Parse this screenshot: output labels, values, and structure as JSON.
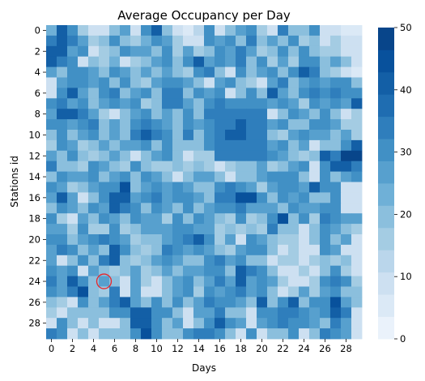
{
  "chart_data": {
    "type": "heatmap",
    "title": "Average Occupancy per Day",
    "xlabel": "Days",
    "ylabel": "Stations id",
    "x_tick_labels": [
      "0",
      "2",
      "4",
      "6",
      "8",
      "10",
      "12",
      "14",
      "16",
      "18",
      "20",
      "22",
      "24",
      "26",
      "28"
    ],
    "y_tick_labels": [
      "0",
      "2",
      "4",
      "6",
      "8",
      "10",
      "12",
      "14",
      "16",
      "18",
      "20",
      "22",
      "24",
      "26",
      "28"
    ],
    "rows": 30,
    "cols": 30,
    "vmin": 0,
    "vmax": 50,
    "colorbar_ticks": [
      "0",
      "10",
      "20",
      "30",
      "40",
      "50"
    ],
    "colormap": "Blues",
    "color_levels": [
      "#eaf2fb",
      "#dbe9f6",
      "#cde0f1",
      "#bad6eb",
      "#a4cce3",
      "#8bbfdd",
      "#6fb0d7",
      "#57a0ce",
      "#4190c5",
      "#2f7ebc",
      "#1f6db1",
      "#135fa6",
      "#08519c",
      "#08458a"
    ],
    "annotation": {
      "type": "circle",
      "row": 24,
      "col": 5,
      "color": "#e8252a"
    },
    "values": [
      [
        22,
        40,
        30,
        15,
        10,
        8,
        20,
        25,
        10,
        30,
        40,
        20,
        10,
        5,
        12,
        30,
        10,
        20,
        25,
        30,
        15,
        10,
        35,
        20,
        20,
        30,
        8,
        10,
        5,
        5
      ],
      [
        35,
        40,
        35,
        25,
        15,
        20,
        30,
        20,
        15,
        22,
        30,
        25,
        15,
        8,
        10,
        30,
        25,
        30,
        20,
        35,
        20,
        25,
        20,
        30,
        15,
        20,
        10,
        15,
        10,
        10
      ],
      [
        42,
        42,
        25,
        30,
        10,
        15,
        20,
        30,
        25,
        25,
        20,
        30,
        15,
        25,
        15,
        20,
        30,
        25,
        35,
        25,
        15,
        20,
        30,
        20,
        30,
        20,
        15,
        15,
        10,
        8
      ],
      [
        40,
        35,
        30,
        10,
        20,
        15,
        22,
        10,
        15,
        20,
        25,
        30,
        20,
        30,
        40,
        25,
        30,
        25,
        35,
        20,
        30,
        15,
        25,
        15,
        30,
        30,
        20,
        25,
        20,
        10
      ],
      [
        25,
        20,
        30,
        30,
        25,
        20,
        30,
        25,
        20,
        25,
        20,
        25,
        20,
        15,
        30,
        35,
        20,
        10,
        30,
        20,
        25,
        30,
        20,
        30,
        40,
        35,
        20,
        15,
        10,
        5
      ],
      [
        8,
        25,
        30,
        30,
        25,
        30,
        20,
        30,
        20,
        15,
        25,
        30,
        30,
        25,
        20,
        10,
        25,
        30,
        20,
        15,
        10,
        25,
        35,
        20,
        25,
        30,
        25,
        30,
        30,
        20
      ],
      [
        10,
        30,
        40,
        25,
        20,
        30,
        35,
        20,
        25,
        30,
        20,
        35,
        35,
        20,
        30,
        25,
        30,
        10,
        20,
        30,
        20,
        40,
        25,
        20,
        30,
        35,
        30,
        35,
        30,
        30
      ],
      [
        30,
        35,
        25,
        30,
        20,
        25,
        30,
        25,
        30,
        15,
        20,
        35,
        35,
        25,
        20,
        30,
        35,
        30,
        30,
        30,
        30,
        25,
        30,
        25,
        15,
        30,
        25,
        30,
        25,
        40
      ],
      [
        25,
        40,
        40,
        35,
        25,
        15,
        10,
        20,
        25,
        30,
        20,
        25,
        20,
        30,
        20,
        35,
        35,
        35,
        35,
        35,
        35,
        10,
        20,
        30,
        25,
        20,
        30,
        20,
        10,
        15
      ],
      [
        30,
        30,
        25,
        30,
        35,
        20,
        25,
        20,
        30,
        35,
        30,
        25,
        20,
        30,
        25,
        30,
        35,
        35,
        40,
        35,
        35,
        25,
        30,
        20,
        20,
        30,
        30,
        25,
        15,
        15
      ],
      [
        20,
        30,
        20,
        25,
        30,
        20,
        25,
        20,
        35,
        40,
        35,
        30,
        20,
        35,
        20,
        30,
        35,
        40,
        40,
        35,
        35,
        20,
        15,
        25,
        30,
        25,
        25,
        20,
        25,
        15
      ],
      [
        15,
        30,
        25,
        15,
        20,
        25,
        20,
        25,
        25,
        30,
        20,
        30,
        20,
        20,
        20,
        30,
        35,
        35,
        35,
        35,
        35,
        25,
        30,
        20,
        25,
        10,
        20,
        20,
        30,
        40
      ],
      [
        25,
        20,
        30,
        20,
        15,
        20,
        25,
        20,
        10,
        20,
        25,
        30,
        20,
        10,
        15,
        15,
        35,
        35,
        35,
        35,
        35,
        30,
        25,
        20,
        15,
        20,
        40,
        35,
        50,
        50
      ],
      [
        35,
        20,
        20,
        15,
        30,
        25,
        20,
        15,
        30,
        20,
        15,
        15,
        20,
        15,
        20,
        15,
        10,
        15,
        20,
        20,
        25,
        15,
        20,
        25,
        30,
        10,
        30,
        40,
        40,
        35
      ],
      [
        20,
        30,
        25,
        25,
        30,
        20,
        25,
        30,
        20,
        30,
        25,
        20,
        10,
        20,
        25,
        25,
        20,
        10,
        20,
        20,
        25,
        30,
        30,
        30,
        20,
        10,
        30,
        20,
        25,
        30
      ],
      [
        30,
        25,
        15,
        20,
        25,
        30,
        30,
        45,
        20,
        25,
        30,
        25,
        30,
        25,
        20,
        20,
        30,
        35,
        30,
        25,
        15,
        25,
        30,
        30,
        25,
        40,
        30,
        30,
        10,
        10
      ],
      [
        25,
        40,
        25,
        10,
        20,
        30,
        40,
        40,
        25,
        30,
        35,
        25,
        30,
        30,
        25,
        20,
        35,
        35,
        45,
        45,
        30,
        20,
        30,
        25,
        30,
        20,
        20,
        30,
        10,
        10
      ],
      [
        20,
        30,
        25,
        20,
        30,
        25,
        40,
        35,
        30,
        20,
        30,
        25,
        20,
        30,
        20,
        25,
        30,
        30,
        35,
        25,
        25,
        25,
        20,
        30,
        25,
        25,
        30,
        30,
        10,
        10
      ],
      [
        30,
        15,
        10,
        25,
        20,
        30,
        25,
        20,
        30,
        25,
        25,
        15,
        30,
        20,
        30,
        25,
        20,
        15,
        30,
        15,
        20,
        30,
        45,
        20,
        30,
        15,
        35,
        30,
        25,
        25
      ],
      [
        25,
        25,
        15,
        30,
        15,
        15,
        30,
        15,
        20,
        25,
        25,
        25,
        30,
        30,
        25,
        25,
        15,
        20,
        15,
        20,
        15,
        35,
        20,
        20,
        10,
        20,
        30,
        25,
        20,
        15
      ],
      [
        30,
        30,
        20,
        25,
        30,
        35,
        30,
        25,
        15,
        20,
        20,
        25,
        30,
        35,
        40,
        30,
        15,
        25,
        10,
        30,
        25,
        20,
        15,
        15,
        10,
        20,
        30,
        20,
        25,
        10
      ],
      [
        25,
        35,
        30,
        20,
        25,
        20,
        40,
        30,
        20,
        15,
        20,
        35,
        30,
        25,
        30,
        25,
        20,
        15,
        25,
        30,
        30,
        20,
        10,
        15,
        10,
        10,
        30,
        25,
        10,
        10
      ],
      [
        25,
        10,
        20,
        30,
        20,
        35,
        40,
        20,
        15,
        20,
        25,
        30,
        25,
        20,
        20,
        30,
        35,
        25,
        30,
        20,
        20,
        10,
        15,
        15,
        10,
        15,
        20,
        15,
        20,
        10
      ],
      [
        30,
        25,
        30,
        10,
        25,
        20,
        15,
        20,
        25,
        15,
        20,
        25,
        20,
        25,
        25,
        30,
        30,
        20,
        40,
        35,
        30,
        20,
        10,
        10,
        15,
        10,
        20,
        30,
        15,
        10
      ],
      [
        35,
        25,
        40,
        30,
        20,
        25,
        20,
        10,
        25,
        15,
        10,
        20,
        25,
        30,
        20,
        25,
        35,
        25,
        40,
        25,
        30,
        25,
        15,
        10,
        10,
        15,
        30,
        35,
        30,
        15
      ],
      [
        30,
        25,
        35,
        45,
        20,
        15,
        35,
        10,
        25,
        10,
        10,
        20,
        25,
        30,
        15,
        30,
        25,
        30,
        35,
        25,
        30,
        20,
        10,
        15,
        25,
        15,
        25,
        30,
        20,
        20
      ],
      [
        20,
        15,
        10,
        30,
        20,
        25,
        35,
        40,
        25,
        20,
        30,
        20,
        30,
        20,
        25,
        35,
        30,
        30,
        25,
        20,
        40,
        20,
        30,
        40,
        20,
        30,
        30,
        45,
        25,
        20
      ],
      [
        15,
        10,
        20,
        20,
        20,
        20,
        30,
        30,
        40,
        40,
        30,
        30,
        20,
        10,
        25,
        25,
        35,
        20,
        20,
        10,
        30,
        30,
        35,
        35,
        30,
        25,
        30,
        40,
        35,
        10
      ],
      [
        10,
        30,
        20,
        10,
        20,
        10,
        10,
        20,
        40,
        40,
        30,
        20,
        25,
        10,
        20,
        30,
        40,
        30,
        25,
        10,
        25,
        30,
        35,
        30,
        30,
        25,
        20,
        35,
        25,
        10
      ],
      [
        35,
        30,
        10,
        20,
        10,
        20,
        20,
        20,
        30,
        45,
        30,
        20,
        20,
        30,
        35,
        35,
        30,
        20,
        10,
        30,
        10,
        20,
        20,
        30,
        10,
        20,
        35,
        30,
        25,
        10
      ]
    ]
  }
}
